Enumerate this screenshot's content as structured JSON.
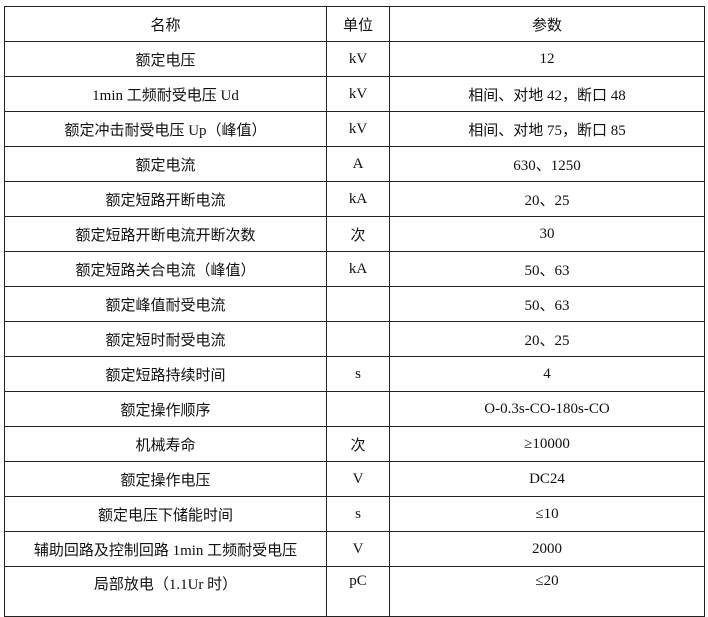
{
  "table": {
    "headers": [
      "名称",
      "单位",
      "参数"
    ],
    "rows": [
      [
        "额定电压",
        "kV",
        "12"
      ],
      [
        "1min 工频耐受电压 Ud",
        "kV",
        "相间、对地 42，断口 48"
      ],
      [
        "额定冲击耐受电压 Up（峰值）",
        "kV",
        "相间、对地 75，断口 85"
      ],
      [
        "额定电流",
        "A",
        "630、1250"
      ],
      [
        "额定短路开断电流",
        "kA",
        "20、25"
      ],
      [
        "额定短路开断电流开断次数",
        "次",
        "30"
      ],
      [
        "额定短路关合电流（峰值）",
        "kA",
        "50、63"
      ],
      [
        "额定峰值耐受电流",
        "",
        "50、63"
      ],
      [
        "额定短时耐受电流",
        "",
        "20、25"
      ],
      [
        "额定短路持续时间",
        "s",
        "4"
      ],
      [
        "额定操作顺序",
        "",
        "O-0.3s-CO-180s-CO"
      ],
      [
        "机械寿命",
        "次",
        "≥10000"
      ],
      [
        "额定操作电压",
        "V",
        "DC24"
      ],
      [
        "额定电压下储能时间",
        "s",
        "≤10"
      ],
      [
        "辅助回路及控制回路 1min 工频耐受电压",
        "V",
        "2000"
      ],
      [
        "局部放电（1.1Ur 时）",
        "pC",
        "≤20"
      ]
    ]
  }
}
